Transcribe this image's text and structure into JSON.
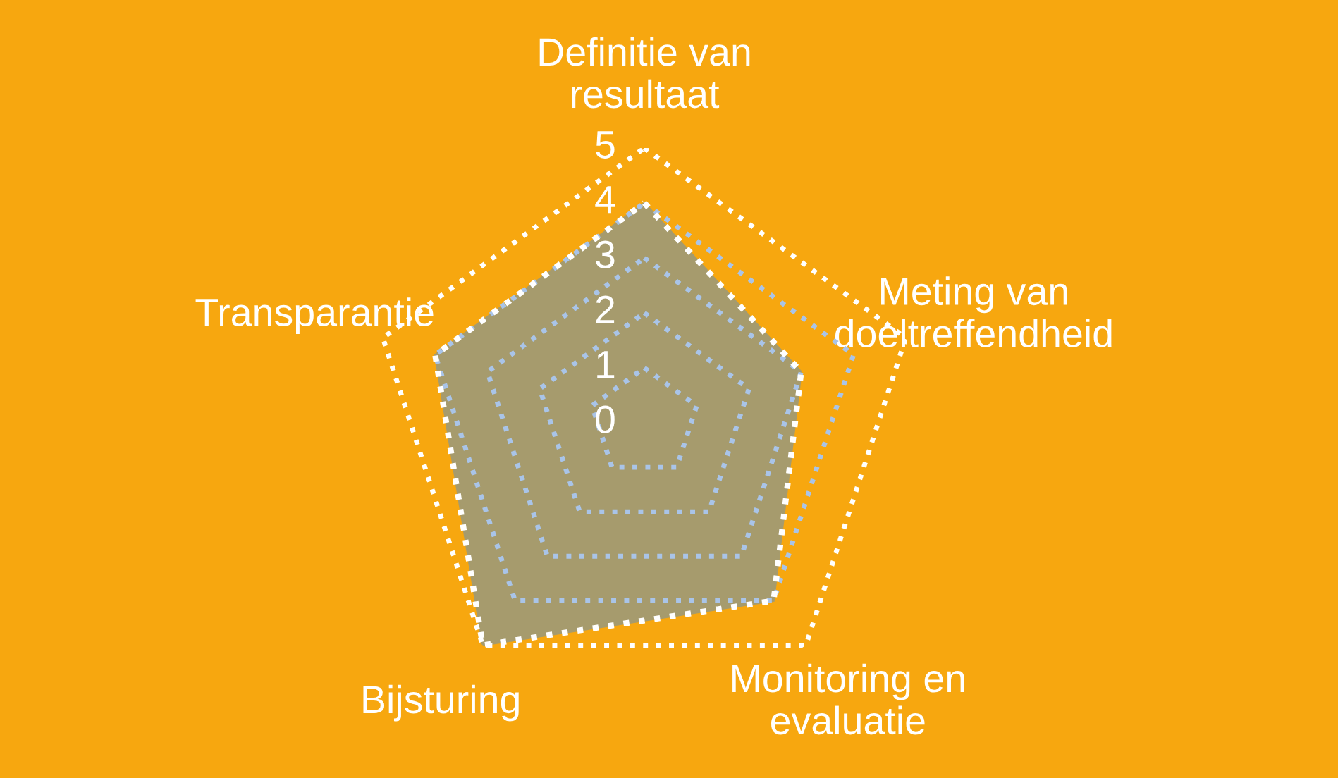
{
  "chart_data": {
    "type": "radar",
    "categories": [
      "Definitie van\nresultaat",
      "Meting van\ndoeltreffendheid",
      "Monitoring en\nevaluatie",
      "Bijsturing",
      "Transparantie"
    ],
    "series": [
      {
        "color": "#a69b6d",
        "values": [
          4,
          3,
          4,
          5,
          4
        ]
      }
    ],
    "ylim": [
      0,
      5
    ],
    "yticks": [
      0,
      1,
      2,
      3,
      4,
      5
    ],
    "grid": true,
    "line_style": "dotted",
    "legend": false
  }
}
